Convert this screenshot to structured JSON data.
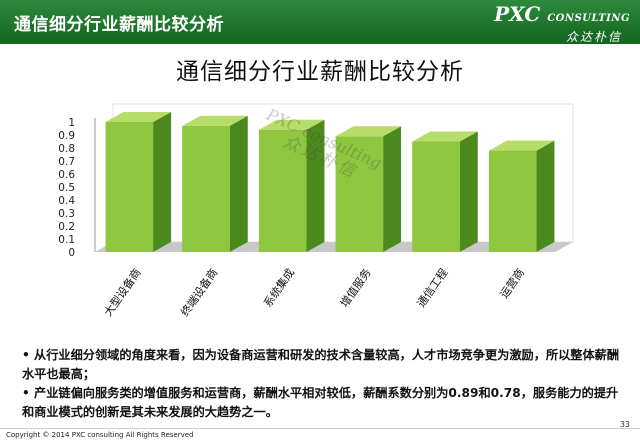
{
  "header": {
    "title": "通信细分行业薪酬比较分析",
    "logo_main": "PXC",
    "logo_small": "CONSULTING",
    "logo_sub": "众达朴信"
  },
  "chart_data": {
    "type": "bar",
    "title": "通信细分行业薪酬比较分析",
    "categories": [
      "大型设备商",
      "终端设备商",
      "系统集成",
      "增值服务",
      "通信工程",
      "运营商"
    ],
    "values": [
      1.0,
      0.97,
      0.94,
      0.89,
      0.85,
      0.78
    ],
    "yticks": [
      "0",
      "0.1",
      "0.2",
      "0.3",
      "0.4",
      "0.5",
      "0.6",
      "0.7",
      "0.8",
      "0.9",
      "1"
    ],
    "ylim": [
      0,
      1
    ],
    "colors": {
      "front": "#8ec63f",
      "side": "#4d8a1e",
      "top": "#b6dc6a",
      "floor": "#c8c8c8",
      "wall": "#ffffff"
    }
  },
  "watermark": {
    "main": "PXC consulting",
    "sub": "众达朴信"
  },
  "bullets": [
    "• 从行业细分领域的角度来看，因为设备商运营和研发的技术含量较高，人才市场竞争更为激励，所以整体薪酬水平也最高；",
    "• 产业链偏向服务类的增值服务和运营商，薪酬水平相对较低，薪酬系数分别为0.89和0.78，服务能力的提升和商业模式的创新是其未来发展的大趋势之一。"
  ],
  "footer": {
    "copyright": "Copyright © 2014 PXC consulting All Rights Reserved",
    "page": "33"
  }
}
